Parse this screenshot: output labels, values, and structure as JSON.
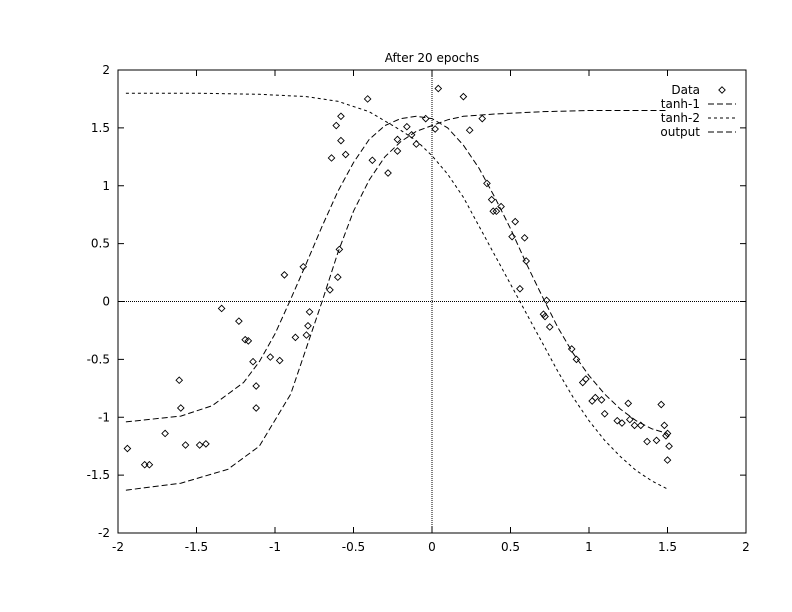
{
  "chart_data": {
    "type": "scatter",
    "title": "After 20 epochs",
    "xlabel": "",
    "ylabel": "",
    "xlim": [
      -2,
      2
    ],
    "ylim": [
      -2,
      2
    ],
    "xticks": [
      "-2",
      "-1.5",
      "-1",
      "-0.5",
      "0",
      "0.5",
      "1",
      "1.5",
      "2"
    ],
    "yticks": [
      "-2",
      "-1.5",
      "-1",
      "-0.5",
      "0",
      "0.5",
      "1",
      "1.5",
      "2"
    ],
    "grid": false,
    "zero_axes": true,
    "legend_position": "top-right",
    "series": [
      {
        "name": "Data",
        "kind": "points",
        "marker": "diamond",
        "points": [
          [
            -1.94,
            -1.27
          ],
          [
            -1.83,
            -1.41
          ],
          [
            -1.8,
            -1.41
          ],
          [
            -1.7,
            -1.14
          ],
          [
            -1.61,
            -0.68
          ],
          [
            -1.6,
            -0.92
          ],
          [
            -1.57,
            -1.24
          ],
          [
            -1.48,
            -1.24
          ],
          [
            -1.44,
            -1.23
          ],
          [
            -1.34,
            -0.06
          ],
          [
            -1.23,
            -0.17
          ],
          [
            -1.19,
            -0.33
          ],
          [
            -1.17,
            -0.34
          ],
          [
            -1.14,
            -0.52
          ],
          [
            -1.12,
            -0.73
          ],
          [
            -1.12,
            -0.92
          ],
          [
            -1.03,
            -0.48
          ],
          [
            -0.97,
            -0.51
          ],
          [
            -0.94,
            0.23
          ],
          [
            -0.87,
            -0.31
          ],
          [
            -0.82,
            0.3
          ],
          [
            -0.8,
            -0.29
          ],
          [
            -0.79,
            -0.21
          ],
          [
            -0.78,
            -0.09
          ],
          [
            -0.65,
            0.1
          ],
          [
            -0.6,
            0.21
          ],
          [
            -0.59,
            0.45
          ],
          [
            -0.64,
            1.24
          ],
          [
            -0.61,
            1.52
          ],
          [
            -0.58,
            1.6
          ],
          [
            -0.58,
            1.39
          ],
          [
            -0.55,
            1.27
          ],
          [
            -0.41,
            1.75
          ],
          [
            -0.38,
            1.22
          ],
          [
            -0.28,
            1.11
          ],
          [
            -0.22,
            1.3
          ],
          [
            -0.22,
            1.4
          ],
          [
            -0.16,
            1.51
          ],
          [
            -0.13,
            1.44
          ],
          [
            -0.1,
            1.36
          ],
          [
            -0.04,
            1.58
          ],
          [
            0.02,
            1.49
          ],
          [
            0.04,
            1.84
          ],
          [
            0.2,
            1.77
          ],
          [
            0.24,
            1.48
          ],
          [
            0.32,
            1.58
          ],
          [
            0.35,
            1.02
          ],
          [
            0.38,
            0.88
          ],
          [
            0.39,
            0.78
          ],
          [
            0.41,
            0.78
          ],
          [
            0.44,
            0.82
          ],
          [
            0.51,
            0.56
          ],
          [
            0.53,
            0.69
          ],
          [
            0.56,
            0.11
          ],
          [
            0.59,
            0.55
          ],
          [
            0.6,
            0.35
          ],
          [
            0.71,
            -0.11
          ],
          [
            0.72,
            -0.13
          ],
          [
            0.73,
            0.01
          ],
          [
            0.75,
            -0.22
          ],
          [
            0.89,
            -0.41
          ],
          [
            0.92,
            -0.5
          ],
          [
            0.96,
            -0.7
          ],
          [
            0.98,
            -0.67
          ],
          [
            1.02,
            -0.86
          ],
          [
            1.04,
            -0.83
          ],
          [
            1.08,
            -0.85
          ],
          [
            1.1,
            -0.97
          ],
          [
            1.18,
            -1.03
          ],
          [
            1.21,
            -1.05
          ],
          [
            1.25,
            -0.88
          ],
          [
            1.26,
            -1.02
          ],
          [
            1.29,
            -1.07
          ],
          [
            1.33,
            -1.07
          ],
          [
            1.37,
            -1.21
          ],
          [
            1.43,
            -1.2
          ],
          [
            1.46,
            -0.89
          ],
          [
            1.48,
            -1.07
          ],
          [
            1.49,
            -1.16
          ],
          [
            1.5,
            -1.37
          ],
          [
            1.51,
            -1.25
          ],
          [
            1.5,
            -1.14
          ]
        ]
      },
      {
        "name": "tanh-1",
        "kind": "line",
        "dash": "long",
        "points": [
          [
            -1.95,
            -1.63
          ],
          [
            -1.6,
            -1.57
          ],
          [
            -1.3,
            -1.45
          ],
          [
            -1.1,
            -1.25
          ],
          [
            -0.9,
            -0.8
          ],
          [
            -0.8,
            -0.4
          ],
          [
            -0.7,
            0.0
          ],
          [
            -0.6,
            0.42
          ],
          [
            -0.5,
            0.78
          ],
          [
            -0.4,
            1.05
          ],
          [
            -0.3,
            1.25
          ],
          [
            -0.2,
            1.38
          ],
          [
            -0.1,
            1.47
          ],
          [
            0.0,
            1.52
          ],
          [
            0.1,
            1.57
          ],
          [
            0.2,
            1.6
          ],
          [
            0.4,
            1.62
          ],
          [
            0.7,
            1.64
          ],
          [
            1.0,
            1.65
          ],
          [
            1.5,
            1.65
          ]
        ]
      },
      {
        "name": "tanh-2",
        "kind": "line",
        "dash": "short",
        "points": [
          [
            -1.95,
            1.8
          ],
          [
            -1.5,
            1.8
          ],
          [
            -1.1,
            1.79
          ],
          [
            -0.8,
            1.77
          ],
          [
            -0.6,
            1.73
          ],
          [
            -0.4,
            1.64
          ],
          [
            -0.2,
            1.48
          ],
          [
            -0.1,
            1.39
          ],
          [
            0.0,
            1.26
          ],
          [
            0.1,
            1.1
          ],
          [
            0.2,
            0.9
          ],
          [
            0.3,
            0.65
          ],
          [
            0.4,
            0.4
          ],
          [
            0.5,
            0.15
          ],
          [
            0.6,
            -0.1
          ],
          [
            0.7,
            -0.35
          ],
          [
            0.8,
            -0.6
          ],
          [
            0.9,
            -0.83
          ],
          [
            1.0,
            -1.03
          ],
          [
            1.1,
            -1.2
          ],
          [
            1.2,
            -1.34
          ],
          [
            1.3,
            -1.46
          ],
          [
            1.4,
            -1.55
          ],
          [
            1.5,
            -1.62
          ]
        ]
      },
      {
        "name": "output",
        "kind": "line",
        "dash": "long",
        "points": [
          [
            -1.95,
            -1.04
          ],
          [
            -1.6,
            -0.99
          ],
          [
            -1.4,
            -0.9
          ],
          [
            -1.2,
            -0.7
          ],
          [
            -1.1,
            -0.52
          ],
          [
            -1.0,
            -0.28
          ],
          [
            -0.9,
            0.02
          ],
          [
            -0.8,
            0.33
          ],
          [
            -0.7,
            0.65
          ],
          [
            -0.6,
            0.95
          ],
          [
            -0.5,
            1.2
          ],
          [
            -0.4,
            1.4
          ],
          [
            -0.3,
            1.52
          ],
          [
            -0.2,
            1.58
          ],
          [
            -0.1,
            1.6
          ],
          [
            0.0,
            1.58
          ],
          [
            0.1,
            1.5
          ],
          [
            0.2,
            1.35
          ],
          [
            0.3,
            1.15
          ],
          [
            0.4,
            0.9
          ],
          [
            0.5,
            0.63
          ],
          [
            0.6,
            0.33
          ],
          [
            0.7,
            0.05
          ],
          [
            0.8,
            -0.22
          ],
          [
            0.9,
            -0.45
          ],
          [
            1.0,
            -0.64
          ],
          [
            1.1,
            -0.8
          ],
          [
            1.2,
            -0.93
          ],
          [
            1.3,
            -1.03
          ],
          [
            1.4,
            -1.1
          ],
          [
            1.5,
            -1.14
          ]
        ]
      }
    ]
  }
}
